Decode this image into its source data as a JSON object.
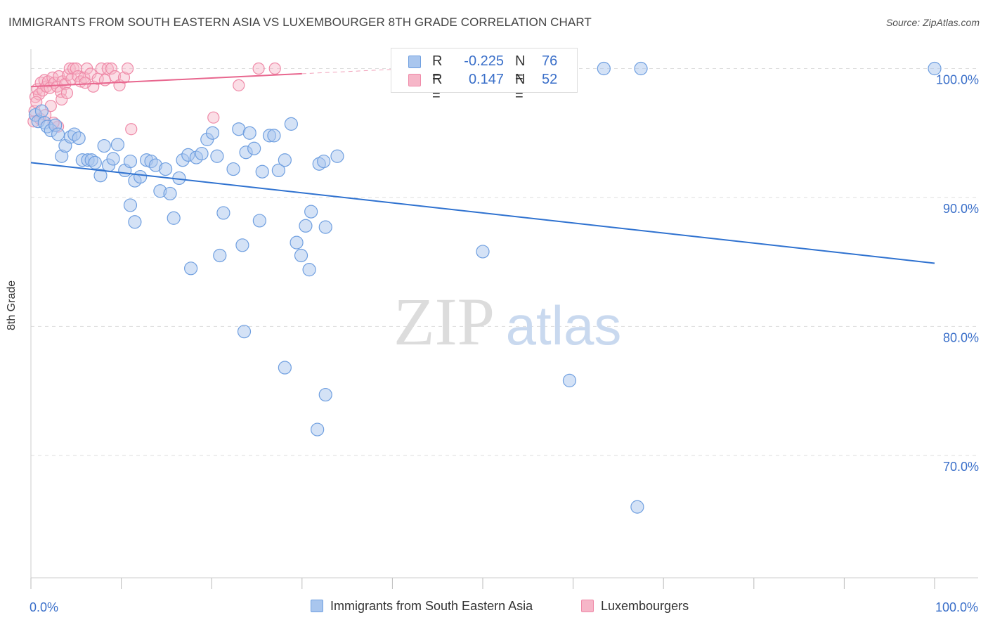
{
  "title": "IMMIGRANTS FROM SOUTH EASTERN ASIA VS LUXEMBOURGER 8TH GRADE CORRELATION CHART",
  "source": "Source: ZipAtlas.com",
  "watermark": {
    "zip": "ZIP",
    "atlas": "atlas"
  },
  "legend": {
    "rows": [
      {
        "r_label": "R =",
        "r_value": "-0.225",
        "n_label": "N =",
        "n_value": "76"
      },
      {
        "r_label": "R =",
        "r_value": "0.147",
        "n_label": "N =",
        "n_value": "52"
      }
    ]
  },
  "colors": {
    "blue_fill": "#a9c6ee",
    "blue_stroke": "#6f9fe0",
    "blue_line": "#2f72d0",
    "pink_fill": "#f6b6c8",
    "pink_stroke": "#ef8aa8",
    "pink_line": "#e8668e",
    "value_text": "#3a6fc9",
    "grid": "#dddddd"
  },
  "chart_data": {
    "type": "scatter",
    "title": "IMMIGRANTS FROM SOUTH EASTERN ASIA VS LUXEMBOURGER 8TH GRADE CORRELATION CHART",
    "xlabel": "",
    "ylabel": "8th Grade",
    "xlim": [
      0,
      100
    ],
    "ylim": [
      60.5,
      101.5
    ],
    "x_tick_labels": [
      "0.0%",
      "100.0%"
    ],
    "y_ticks": [
      70,
      80,
      90,
      100
    ],
    "y_tick_labels": [
      "70.0%",
      "80.0%",
      "90.0%",
      "100.0%"
    ],
    "series": [
      {
        "name": "Immigrants from South Eastern Asia",
        "color": "blue",
        "r": -0.225,
        "n": 76,
        "trend": {
          "x0": 0,
          "y0": 92.7,
          "x1": 100,
          "y1": 84.9
        },
        "points": [
          [
            0.5,
            96.4
          ],
          [
            0.8,
            95.9
          ],
          [
            1.2,
            96.7
          ],
          [
            1.5,
            95.8
          ],
          [
            1.8,
            95.5
          ],
          [
            2.2,
            95.2
          ],
          [
            2.7,
            95.6
          ],
          [
            3.0,
            94.9
          ],
          [
            3.4,
            93.2
          ],
          [
            3.8,
            94.0
          ],
          [
            4.4,
            94.7
          ],
          [
            4.8,
            94.9
          ],
          [
            5.3,
            94.6
          ],
          [
            5.7,
            92.9
          ],
          [
            6.3,
            92.9
          ],
          [
            6.7,
            92.9
          ],
          [
            7.1,
            92.7
          ],
          [
            7.7,
            91.7
          ],
          [
            8.1,
            94.0
          ],
          [
            8.6,
            92.5
          ],
          [
            9.1,
            93.0
          ],
          [
            9.6,
            94.1
          ],
          [
            10.4,
            92.1
          ],
          [
            11.0,
            92.8
          ],
          [
            11.5,
            91.3
          ],
          [
            12.1,
            91.6
          ],
          [
            12.8,
            92.9
          ],
          [
            13.3,
            92.8
          ],
          [
            13.8,
            92.5
          ],
          [
            14.3,
            90.5
          ],
          [
            14.9,
            92.2
          ],
          [
            15.4,
            90.3
          ],
          [
            16.4,
            91.5
          ],
          [
            16.8,
            92.9
          ],
          [
            17.4,
            93.3
          ],
          [
            18.3,
            93.1
          ],
          [
            18.9,
            93.4
          ],
          [
            19.5,
            94.5
          ],
          [
            20.1,
            95.0
          ],
          [
            20.6,
            93.2
          ],
          [
            22.4,
            92.2
          ],
          [
            23.0,
            95.3
          ],
          [
            23.8,
            93.5
          ],
          [
            24.2,
            95.0
          ],
          [
            24.7,
            93.8
          ],
          [
            25.6,
            92.0
          ],
          [
            26.4,
            94.8
          ],
          [
            26.9,
            94.8
          ],
          [
            27.4,
            92.1
          ],
          [
            28.1,
            92.9
          ],
          [
            28.8,
            95.7
          ],
          [
            31.9,
            92.6
          ],
          [
            32.4,
            92.8
          ],
          [
            33.9,
            93.2
          ],
          [
            11.0,
            89.4
          ],
          [
            11.5,
            88.1
          ],
          [
            15.8,
            88.4
          ],
          [
            21.3,
            88.8
          ],
          [
            25.3,
            88.2
          ],
          [
            31.0,
            88.9
          ],
          [
            30.4,
            87.8
          ],
          [
            32.6,
            87.7
          ],
          [
            23.4,
            86.3
          ],
          [
            29.4,
            86.5
          ],
          [
            20.9,
            85.5
          ],
          [
            29.9,
            85.5
          ],
          [
            17.7,
            84.5
          ],
          [
            30.8,
            84.4
          ],
          [
            50.0,
            85.8
          ],
          [
            23.6,
            79.6
          ],
          [
            28.1,
            76.8
          ],
          [
            32.6,
            74.7
          ],
          [
            31.7,
            72.0
          ],
          [
            59.6,
            75.8
          ],
          [
            67.1,
            66.0
          ],
          [
            63.4,
            100.0
          ],
          [
            67.5,
            100.0
          ],
          [
            100.0,
            100.0
          ]
        ]
      },
      {
        "name": "Luxembourgers",
        "color": "pink",
        "r": 0.147,
        "n": 52,
        "trend": {
          "x0": 0,
          "y0": 98.6,
          "x1": 30,
          "y1": 99.6,
          "dash_to_x": 42,
          "dash_to_y": 100.0
        },
        "points": [
          [
            0.3,
            95.9
          ],
          [
            0.5,
            97.8
          ],
          [
            0.7,
            98.4
          ],
          [
            0.9,
            98.0
          ],
          [
            1.1,
            98.9
          ],
          [
            1.3,
            98.3
          ],
          [
            1.5,
            99.1
          ],
          [
            1.7,
            98.6
          ],
          [
            1.9,
            99.0
          ],
          [
            2.1,
            98.5
          ],
          [
            2.4,
            99.3
          ],
          [
            2.6,
            98.9
          ],
          [
            2.9,
            98.6
          ],
          [
            3.1,
            99.4
          ],
          [
            3.3,
            98.2
          ],
          [
            3.5,
            99.0
          ],
          [
            3.8,
            98.8
          ],
          [
            4.1,
            99.5
          ],
          [
            4.3,
            100.0
          ],
          [
            4.5,
            99.2
          ],
          [
            4.7,
            100.0
          ],
          [
            5.0,
            100.0
          ],
          [
            5.2,
            99.4
          ],
          [
            5.5,
            99.0
          ],
          [
            5.9,
            99.3
          ],
          [
            6.2,
            100.0
          ],
          [
            6.6,
            99.6
          ],
          [
            6.9,
            98.6
          ],
          [
            7.4,
            99.2
          ],
          [
            7.8,
            100.0
          ],
          [
            8.2,
            99.1
          ],
          [
            8.5,
            100.0
          ],
          [
            8.9,
            100.0
          ],
          [
            9.3,
            99.4
          ],
          [
            9.8,
            98.7
          ],
          [
            10.3,
            99.3
          ],
          [
            10.7,
            100.0
          ],
          [
            11.1,
            95.3
          ],
          [
            3.0,
            95.5
          ],
          [
            1.0,
            96.1
          ],
          [
            2.5,
            95.8
          ],
          [
            20.2,
            96.2
          ],
          [
            23.0,
            98.7
          ],
          [
            25.2,
            100.0
          ],
          [
            27.0,
            100.0
          ],
          [
            0.4,
            96.7
          ],
          [
            0.6,
            97.4
          ],
          [
            1.6,
            96.4
          ],
          [
            2.2,
            97.1
          ],
          [
            3.4,
            97.6
          ],
          [
            4.0,
            98.1
          ],
          [
            6.0,
            98.9
          ]
        ]
      }
    ]
  }
}
